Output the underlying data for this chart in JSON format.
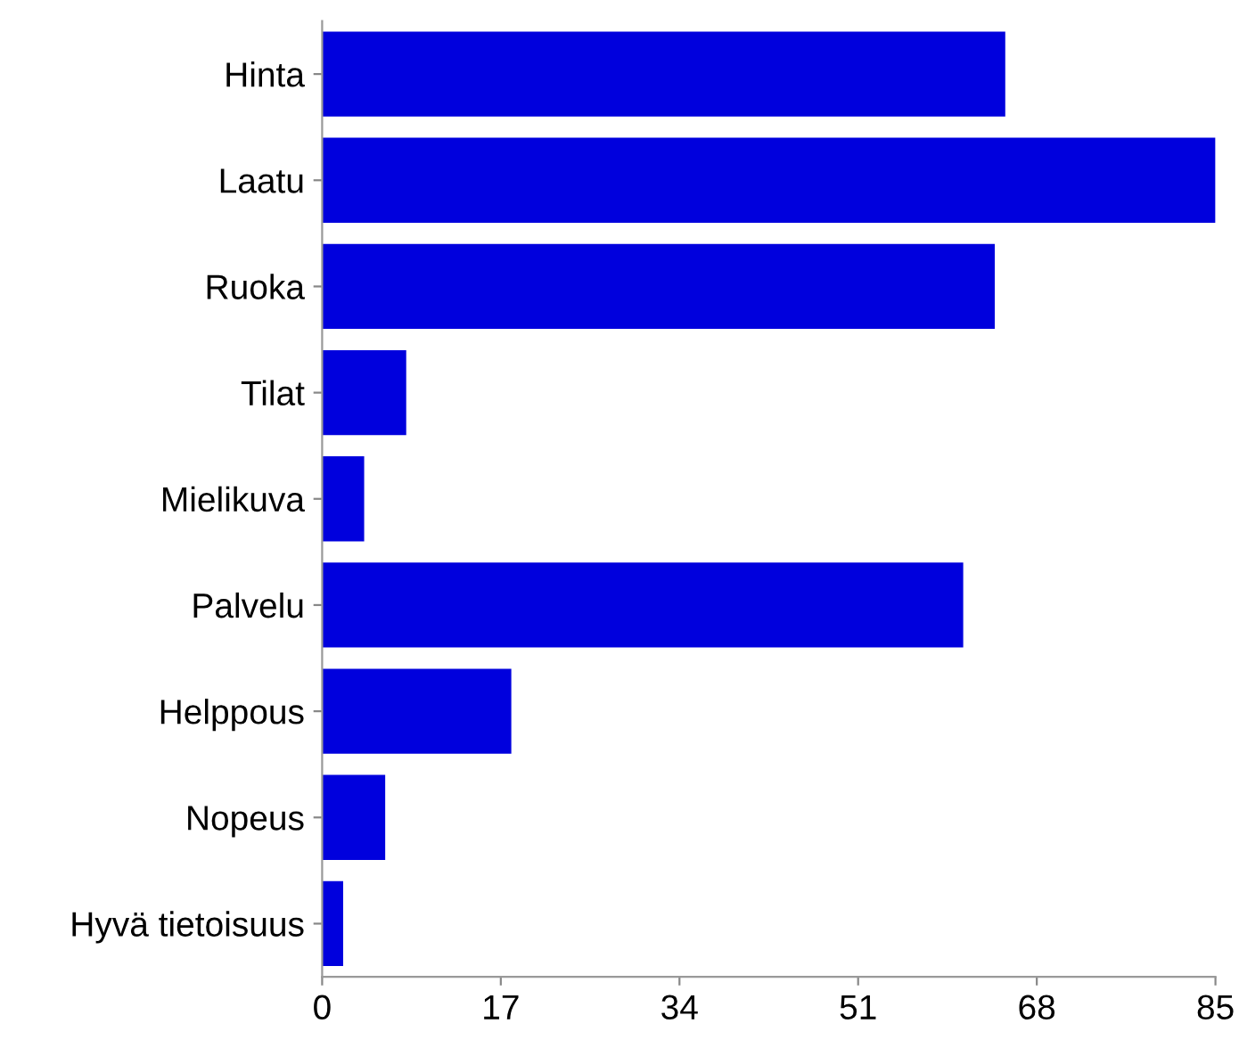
{
  "chart_data": {
    "type": "bar",
    "orientation": "horizontal",
    "categories": [
      "Hinta",
      "Laatu",
      "Ruoka",
      "Tilat",
      "Mielikuva",
      "Palvelu",
      "Helppous",
      "Nopeus",
      "Hyvä tietoisuus"
    ],
    "values": [
      65,
      85,
      64,
      8,
      4,
      61,
      18,
      6,
      2
    ],
    "color": "#0000dd",
    "xlim": [
      0,
      85
    ],
    "xticks": [
      0,
      17,
      34,
      51,
      68,
      85
    ],
    "grid": false,
    "legend": false
  }
}
